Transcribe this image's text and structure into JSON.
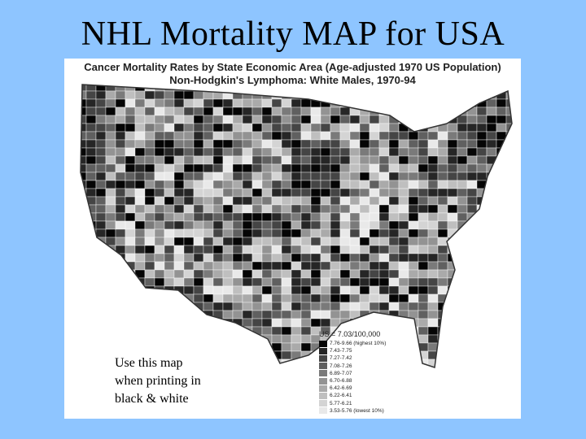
{
  "slide": {
    "title": "NHL Mortality MAP for USA",
    "note_lines": [
      "Use this map",
      "when printing in",
      "black & white"
    ]
  },
  "map": {
    "heading_line1": "Cancer Mortality Rates by State Economic Area (Age-adjusted 1970 US Population)",
    "heading_line2": "Non-Hodgkin's Lymphoma:  White Males, 1970-94",
    "legend": {
      "title": "US = 7.03/100,000",
      "items": [
        {
          "label": "7.76-9.66 (highest 10%)",
          "color": "#050505"
        },
        {
          "label": "7.43-7.75",
          "color": "#262626"
        },
        {
          "label": "7.27-7.42",
          "color": "#454545"
        },
        {
          "label": "7.08-7.26",
          "color": "#606060"
        },
        {
          "label": "6.89-7.07",
          "color": "#7a7a7a"
        },
        {
          "label": "6.70-6.88",
          "color": "#939393"
        },
        {
          "label": "6.42-6.69",
          "color": "#aaaaaa"
        },
        {
          "label": "6.22-6.41",
          "color": "#bfbfbf"
        },
        {
          "label": "5.77-6.21",
          "color": "#d4d4d4"
        },
        {
          "label": "3.53-5.76 (lowest 10%)",
          "color": "#e9e9e9"
        }
      ]
    }
  },
  "colors": {
    "slide_background": "#8ec5ff",
    "map_background": "#ffffff"
  }
}
